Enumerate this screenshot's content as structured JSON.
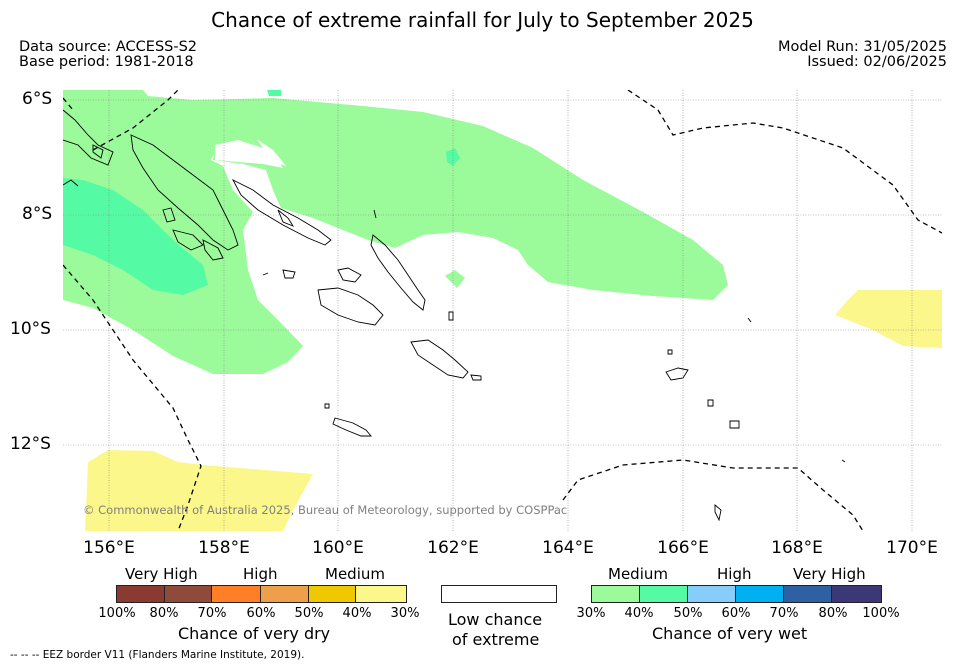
{
  "title": "Chance of extreme rainfall for July to September 2025",
  "meta": {
    "data_source": "Data source: ACCESS-S2",
    "base_period": "Base period: 1981-2018",
    "model_run": "Model Run: 31/05/2025",
    "issued": "Issued: 02/06/2025"
  },
  "map": {
    "lat_labels": [
      "6°S",
      "8°S",
      "10°S",
      "12°S"
    ],
    "lon_labels": [
      "156°E",
      "158°E",
      "160°E",
      "162°E",
      "164°E",
      "166°E",
      "168°E",
      "170°E"
    ],
    "copyright": "© Commonwealth of Australia 2025, Bureau of Meteorology, supported by COSPPac",
    "colors": {
      "medium_wet": "#9bfb9b",
      "high_wet": "#55fba4",
      "medium_dry": "#fcf78a",
      "coast": "#000000",
      "eez": "#000000"
    }
  },
  "legend": {
    "dry": {
      "categories": [
        "Very High",
        "High",
        "Medium"
      ],
      "ticks": [
        "100%",
        "80%",
        "70%",
        "60%",
        "50%",
        "40%",
        "30%"
      ],
      "colors": [
        "#8b3a32",
        "#8e4a3b",
        "#ff7f27",
        "#ee9f4a",
        "#f0c800",
        "#fcf78a"
      ],
      "caption": "Chance of very dry"
    },
    "low": {
      "caption_line1": "Low chance",
      "caption_line2": "of extreme",
      "color": "#ffffff"
    },
    "wet": {
      "categories": [
        "Medium",
        "High",
        "Very High"
      ],
      "ticks": [
        "30%",
        "40%",
        "50%",
        "60%",
        "70%",
        "80%",
        "100%"
      ],
      "colors": [
        "#9bfb9b",
        "#55fba4",
        "#86cdf9",
        "#00b0f0",
        "#2f60a4",
        "#3c3877"
      ],
      "caption": "Chance of very wet"
    }
  },
  "footnote": "--  --  -- EEZ border V11 (Flanders Marine Institute, 2019)."
}
